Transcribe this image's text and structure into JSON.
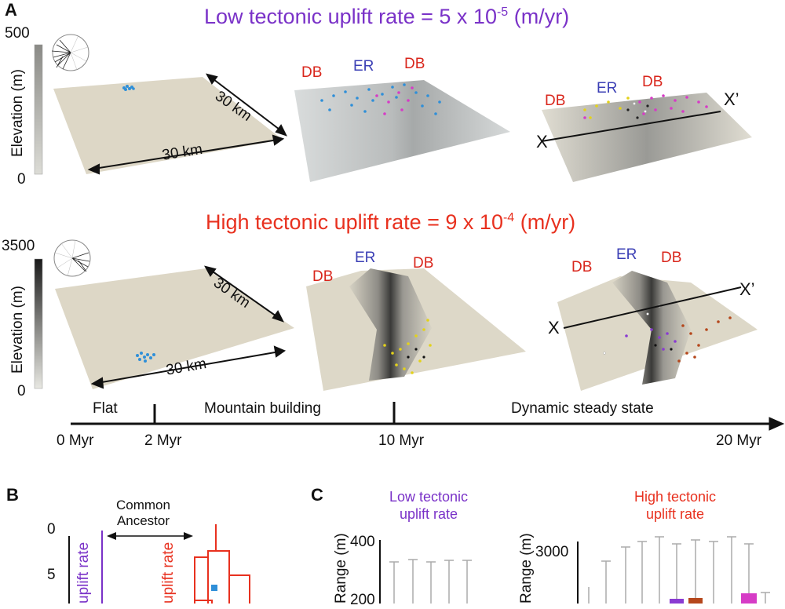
{
  "panels": {
    "A": "A",
    "B": "B",
    "C": "C"
  },
  "rows": {
    "low": {
      "title": "Low tectonic uplift rate = 5 x 10",
      "exponent": "-5",
      "unit": " (m/yr)",
      "scale_max": "500",
      "scale_min": "0",
      "scale_label": "Elevation (m)"
    },
    "high": {
      "title": "High tectonic uplift rate = 9 x 10",
      "exponent": "-4",
      "unit": " (m/yr)",
      "scale_max": "3500",
      "scale_min": "0",
      "scale_label": "Elevation (m)"
    }
  },
  "dimension_labels": {
    "side": "30 km",
    "front": "30 km"
  },
  "region_labels": {
    "db": "DB",
    "er": "ER",
    "x": "X",
    "x_prime": "X’"
  },
  "timeline": {
    "phases": [
      "Flat",
      "Mountain building",
      "Dynamic steady state"
    ],
    "ticks": [
      "0 Myr",
      "2 Myr",
      "10 Myr",
      "20 Myr"
    ]
  },
  "panel_b": {
    "annotation_line1": "Common",
    "annotation_line2": "Ancestor",
    "tick_0": "0",
    "tick_5": "5",
    "label_low": "uplift rate",
    "label_high": "uplift rate"
  },
  "panel_c": {
    "low_title_1": "Low tectonic",
    "low_title_2": "uplift rate",
    "high_title_1": "High tectonic",
    "high_title_2": "uplift rate",
    "low_tick_top": "400",
    "low_tick_mid": "200",
    "high_tick_top": "3000",
    "ylabel": "Range (m)"
  },
  "colors": {
    "purple": "#7a32c8",
    "red": "#e8311f",
    "blue_points": "#2f8fd8",
    "magenta_points": "#d63cc6",
    "yellow_points": "#e3d21a",
    "orange_points": "#b5471c"
  }
}
